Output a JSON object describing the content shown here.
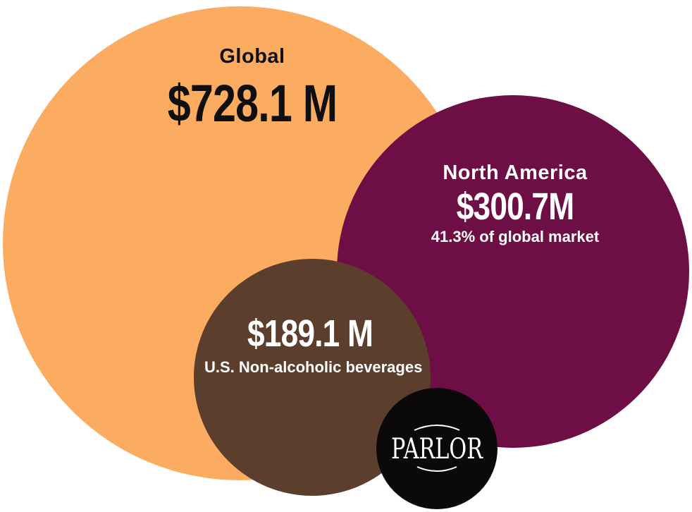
{
  "chart_data": {
    "type": "bubble",
    "series": [
      {
        "key": "global",
        "name": "Global",
        "value_label": "$728.1 M",
        "value": 728.1,
        "unit": "M",
        "color": "#fbac61"
      },
      {
        "key": "na",
        "name": "North America",
        "value_label": "$300.7M",
        "value": 300.7,
        "unit": "M",
        "note": "41.3% of global market",
        "color": "#6d0e45"
      },
      {
        "key": "us",
        "name": "U.S. Non-alcoholic beverages",
        "value_label": "$189.1 M",
        "value": 189.1,
        "unit": "M",
        "color": "#5b3f2c"
      }
    ]
  },
  "logo": {
    "text": "PARLOR",
    "bg": "#0b0909",
    "fg": "#ffffff"
  },
  "text_colors": {
    "dark": "#0f0f0f",
    "light": "#ffffff"
  }
}
